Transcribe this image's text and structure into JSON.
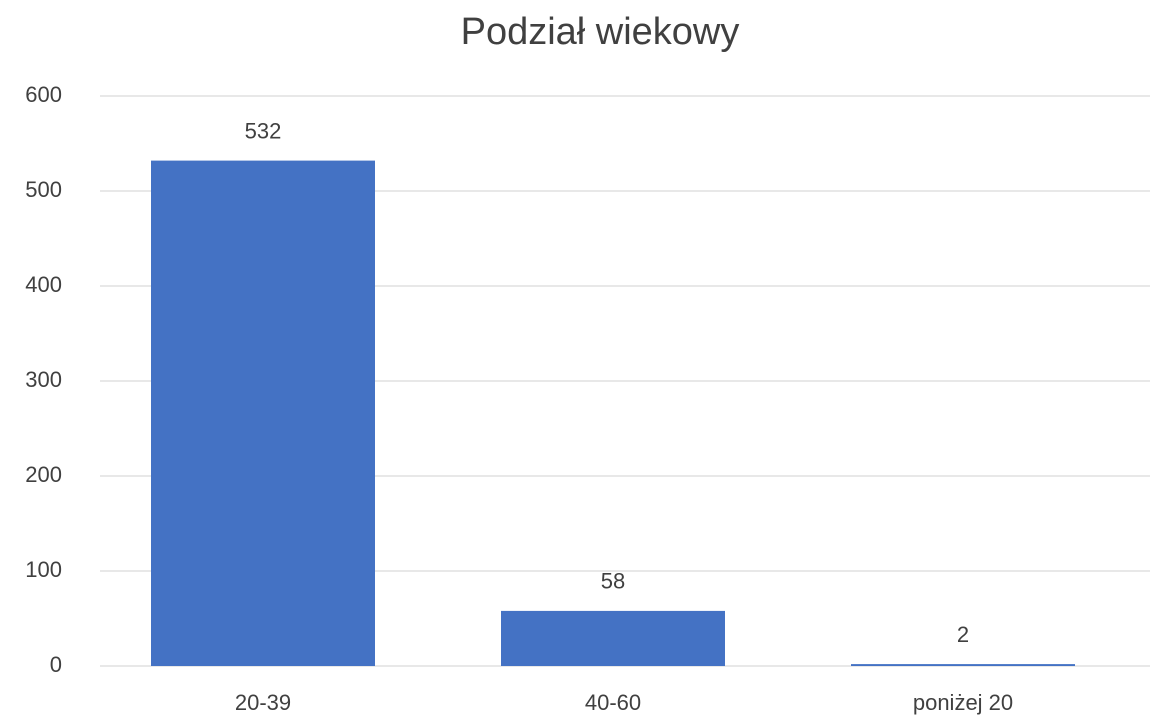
{
  "chart_data": {
    "type": "bar",
    "title": "Podział wiekowy",
    "categories": [
      "20-39",
      "40-60",
      "poniżej 20"
    ],
    "values": [
      532,
      58,
      2
    ],
    "color": "#4472c4",
    "ylim": [
      0,
      600
    ],
    "yticks": [
      0,
      100,
      200,
      300,
      400,
      500,
      600
    ],
    "grid": true,
    "data_labels": true
  }
}
